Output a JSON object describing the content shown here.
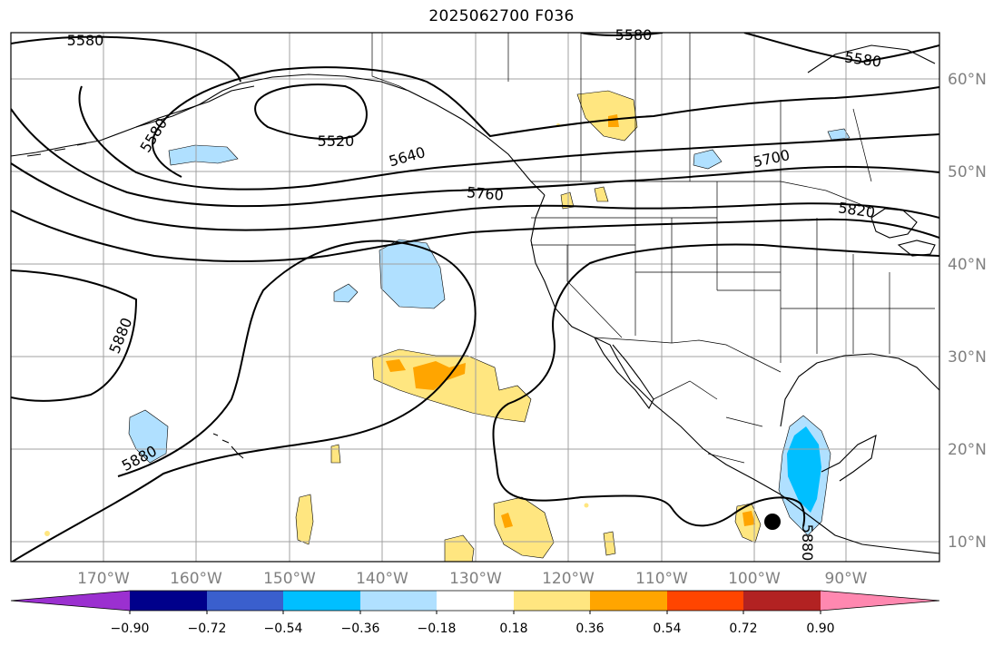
{
  "title": "2025062700 F036",
  "map": {
    "type": "geographic-map",
    "longitude_labels": [
      "170°W",
      "160°W",
      "150°W",
      "140°W",
      "130°W",
      "120°W",
      "110°W",
      "100°W",
      "90°W"
    ],
    "latitude_labels": [
      "60°N",
      "50°N",
      "40°N",
      "30°N",
      "20°N",
      "10°N"
    ],
    "contour_labels": [
      "5580",
      "5580",
      "5580",
      "5580",
      "5520",
      "5640",
      "5760",
      "5700",
      "5820",
      "5880",
      "5880",
      "5880"
    ],
    "marker": "black dot near 12°N 97°W",
    "icons": [
      "storm-center-dot-icon"
    ]
  },
  "colorbar": {
    "ticks": [
      "−0.90",
      "−0.72",
      "−0.54",
      "−0.36",
      "−0.18",
      "0.18",
      "0.36",
      "0.54",
      "0.72",
      "0.90"
    ],
    "colors": [
      "#9b30d0",
      "#00008b",
      "#3a5fcd",
      "#00bfff",
      "#b0e0ff",
      "#ffffff",
      "#ffe680",
      "#ffa500",
      "#ff4500",
      "#b22222",
      "#ff88b0"
    ]
  }
}
